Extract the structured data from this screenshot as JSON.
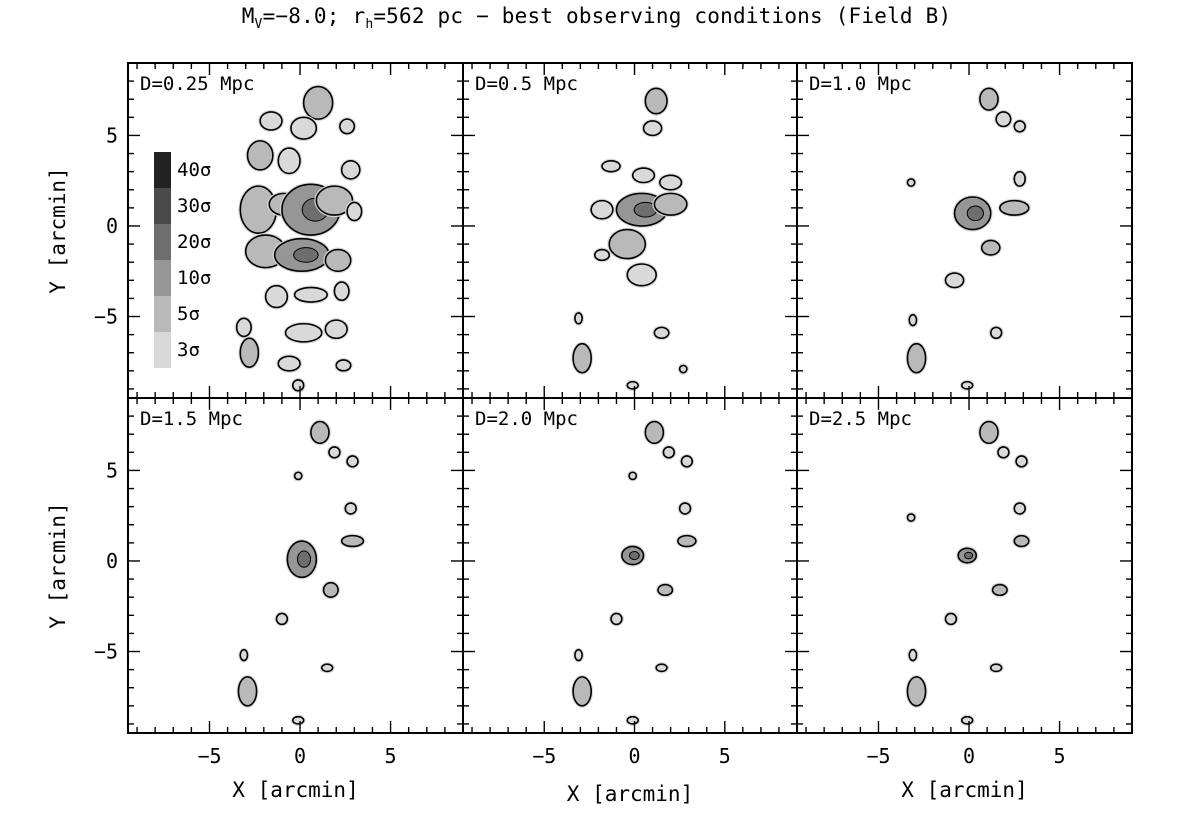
{
  "figure": {
    "title_parts": [
      "M",
      "V",
      "=−8.0; r",
      "h",
      "=562 pc − best observing conditions (Field B)"
    ]
  },
  "chart_data": {
    "type": "heatmap",
    "description_kind": "stellar density significance contour maps",
    "xlabel": "X [arcmin]",
    "ylabel": "Y [arcmin]",
    "xlim": [
      -9.5,
      9
    ],
    "ylim": [
      -9.5,
      9
    ],
    "xticks": [
      -5,
      0,
      5
    ],
    "yticks": [
      -5,
      0,
      5
    ],
    "grid": false,
    "legend": {
      "placement": "upper-left of first panel",
      "levels": [
        {
          "label": "40σ",
          "sigma": 40,
          "color": "#222222"
        },
        {
          "label": "30σ",
          "sigma": 30,
          "color": "#4a4a4a"
        },
        {
          "label": "20σ",
          "sigma": 20,
          "color": "#6e6e6e"
        },
        {
          "label": "10σ",
          "sigma": 10,
          "color": "#969696"
        },
        {
          "label": "5σ",
          "sigma": 5,
          "color": "#b9b9b9"
        },
        {
          "label": "3σ",
          "sigma": 3,
          "color": "#d9d9d9"
        }
      ]
    },
    "panels": [
      {
        "label": "D=0.25 Mpc",
        "distance_mpc": 0.25,
        "blobs": [
          {
            "x": 1.0,
            "y": 6.8,
            "rx": 0.8,
            "ry": 0.9,
            "level": 5
          },
          {
            "x": -1.6,
            "y": 5.8,
            "rx": 0.6,
            "ry": 0.5,
            "level": 3
          },
          {
            "x": 0.2,
            "y": 5.4,
            "rx": 0.7,
            "ry": 0.6,
            "level": 3
          },
          {
            "x": 2.6,
            "y": 5.5,
            "rx": 0.4,
            "ry": 0.4,
            "level": 3
          },
          {
            "x": -2.2,
            "y": 3.9,
            "rx": 0.7,
            "ry": 0.8,
            "level": 5
          },
          {
            "x": -0.6,
            "y": 3.6,
            "rx": 0.6,
            "ry": 0.7,
            "level": 3
          },
          {
            "x": 2.8,
            "y": 3.1,
            "rx": 0.5,
            "ry": 0.5,
            "level": 3
          },
          {
            "x": -2.3,
            "y": 0.9,
            "rx": 1.0,
            "ry": 1.3,
            "level": 5
          },
          {
            "x": -0.9,
            "y": 1.2,
            "rx": 0.8,
            "ry": 0.6,
            "level": 5
          },
          {
            "x": 0.6,
            "y": 0.9,
            "rx": 1.6,
            "ry": 1.4,
            "level": 10
          },
          {
            "x": 1.9,
            "y": 1.4,
            "rx": 1.0,
            "ry": 0.8,
            "level": 5
          },
          {
            "x": 3.0,
            "y": 0.8,
            "rx": 0.4,
            "ry": 0.5,
            "level": 3
          },
          {
            "x": -1.9,
            "y": -1.4,
            "rx": 1.1,
            "ry": 0.9,
            "level": 5
          },
          {
            "x": 0.1,
            "y": -1.6,
            "rx": 1.5,
            "ry": 0.9,
            "level": 10
          },
          {
            "x": 2.1,
            "y": -1.9,
            "rx": 0.7,
            "ry": 0.6,
            "level": 5
          },
          {
            "x": -1.3,
            "y": -3.9,
            "rx": 0.6,
            "ry": 0.6,
            "level": 3
          },
          {
            "x": 0.6,
            "y": -3.8,
            "rx": 0.9,
            "ry": 0.4,
            "level": 3
          },
          {
            "x": 2.3,
            "y": -3.6,
            "rx": 0.4,
            "ry": 0.5,
            "level": 3
          },
          {
            "x": -3.1,
            "y": -5.6,
            "rx": 0.4,
            "ry": 0.5,
            "level": 3
          },
          {
            "x": 0.2,
            "y": -5.9,
            "rx": 1.0,
            "ry": 0.5,
            "level": 3
          },
          {
            "x": 2.0,
            "y": -5.7,
            "rx": 0.6,
            "ry": 0.5,
            "level": 3
          },
          {
            "x": -2.8,
            "y": -7.0,
            "rx": 0.5,
            "ry": 0.8,
            "level": 5
          },
          {
            "x": -0.6,
            "y": -7.6,
            "rx": 0.6,
            "ry": 0.4,
            "level": 3
          },
          {
            "x": 2.4,
            "y": -7.7,
            "rx": 0.4,
            "ry": 0.3,
            "level": 3
          },
          {
            "x": -0.1,
            "y": -8.8,
            "rx": 0.3,
            "ry": 0.3,
            "level": 3
          }
        ]
      },
      {
        "label": "D=0.5 Mpc",
        "distance_mpc": 0.5,
        "blobs": [
          {
            "x": 1.2,
            "y": 6.9,
            "rx": 0.6,
            "ry": 0.7,
            "level": 5
          },
          {
            "x": 1.0,
            "y": 5.4,
            "rx": 0.5,
            "ry": 0.4,
            "level": 3
          },
          {
            "x": -1.3,
            "y": 3.3,
            "rx": 0.5,
            "ry": 0.3,
            "level": 3
          },
          {
            "x": 0.5,
            "y": 2.8,
            "rx": 0.6,
            "ry": 0.4,
            "level": 3
          },
          {
            "x": 2.0,
            "y": 2.4,
            "rx": 0.6,
            "ry": 0.4,
            "level": 3
          },
          {
            "x": -1.8,
            "y": 0.9,
            "rx": 0.6,
            "ry": 0.5,
            "level": 3
          },
          {
            "x": 0.4,
            "y": 0.9,
            "rx": 1.4,
            "ry": 0.9,
            "level": 10
          },
          {
            "x": 2.0,
            "y": 1.2,
            "rx": 0.9,
            "ry": 0.6,
            "level": 5
          },
          {
            "x": -0.4,
            "y": -1.0,
            "rx": 1.0,
            "ry": 0.8,
            "level": 5
          },
          {
            "x": 0.4,
            "y": -2.7,
            "rx": 0.8,
            "ry": 0.6,
            "level": 3
          },
          {
            "x": -1.8,
            "y": -1.6,
            "rx": 0.4,
            "ry": 0.3,
            "level": 3
          },
          {
            "x": -3.1,
            "y": -5.1,
            "rx": 0.2,
            "ry": 0.3,
            "level": 3
          },
          {
            "x": 1.5,
            "y": -5.9,
            "rx": 0.4,
            "ry": 0.3,
            "level": 3
          },
          {
            "x": -2.9,
            "y": -7.3,
            "rx": 0.5,
            "ry": 0.8,
            "level": 5
          },
          {
            "x": 2.7,
            "y": -7.9,
            "rx": 0.2,
            "ry": 0.2,
            "level": 3
          },
          {
            "x": -0.1,
            "y": -8.8,
            "rx": 0.3,
            "ry": 0.2,
            "level": 3
          }
        ]
      },
      {
        "label": "D=1.0 Mpc",
        "distance_mpc": 1.0,
        "blobs": [
          {
            "x": 1.1,
            "y": 7.0,
            "rx": 0.5,
            "ry": 0.6,
            "level": 5
          },
          {
            "x": 1.9,
            "y": 5.9,
            "rx": 0.4,
            "ry": 0.4,
            "level": 3
          },
          {
            "x": 2.8,
            "y": 5.5,
            "rx": 0.3,
            "ry": 0.3,
            "level": 3
          },
          {
            "x": 2.8,
            "y": 2.6,
            "rx": 0.3,
            "ry": 0.4,
            "level": 3
          },
          {
            "x": -3.2,
            "y": 2.4,
            "rx": 0.2,
            "ry": 0.2,
            "level": 3
          },
          {
            "x": 0.2,
            "y": 0.7,
            "rx": 1.0,
            "ry": 0.9,
            "level": 10
          },
          {
            "x": 2.5,
            "y": 1.0,
            "rx": 0.8,
            "ry": 0.4,
            "level": 5
          },
          {
            "x": 1.2,
            "y": -1.2,
            "rx": 0.5,
            "ry": 0.4,
            "level": 5
          },
          {
            "x": -0.8,
            "y": -3.0,
            "rx": 0.5,
            "ry": 0.4,
            "level": 3
          },
          {
            "x": -3.1,
            "y": -5.2,
            "rx": 0.2,
            "ry": 0.3,
            "level": 3
          },
          {
            "x": 1.5,
            "y": -5.9,
            "rx": 0.3,
            "ry": 0.3,
            "level": 3
          },
          {
            "x": -2.9,
            "y": -7.3,
            "rx": 0.5,
            "ry": 0.8,
            "level": 5
          },
          {
            "x": -0.1,
            "y": -8.8,
            "rx": 0.3,
            "ry": 0.2,
            "level": 3
          }
        ]
      },
      {
        "label": "D=1.5 Mpc",
        "distance_mpc": 1.5,
        "blobs": [
          {
            "x": 1.1,
            "y": 7.1,
            "rx": 0.5,
            "ry": 0.6,
            "level": 5
          },
          {
            "x": 1.9,
            "y": 6.0,
            "rx": 0.3,
            "ry": 0.3,
            "level": 3
          },
          {
            "x": 2.9,
            "y": 5.5,
            "rx": 0.3,
            "ry": 0.3,
            "level": 3
          },
          {
            "x": -0.1,
            "y": 4.7,
            "rx": 0.2,
            "ry": 0.2,
            "level": 3
          },
          {
            "x": 2.8,
            "y": 2.9,
            "rx": 0.3,
            "ry": 0.3,
            "level": 3
          },
          {
            "x": 0.1,
            "y": 0.1,
            "rx": 0.8,
            "ry": 1.0,
            "level": 10
          },
          {
            "x": 2.9,
            "y": 1.1,
            "rx": 0.6,
            "ry": 0.3,
            "level": 5
          },
          {
            "x": 1.7,
            "y": -1.6,
            "rx": 0.4,
            "ry": 0.4,
            "level": 5
          },
          {
            "x": -1.0,
            "y": -3.2,
            "rx": 0.3,
            "ry": 0.3,
            "level": 3
          },
          {
            "x": -3.1,
            "y": -5.2,
            "rx": 0.2,
            "ry": 0.3,
            "level": 3
          },
          {
            "x": -2.9,
            "y": -7.2,
            "rx": 0.5,
            "ry": 0.8,
            "level": 5
          },
          {
            "x": 1.5,
            "y": -5.9,
            "rx": 0.3,
            "ry": 0.2,
            "level": 3
          },
          {
            "x": -0.1,
            "y": -8.8,
            "rx": 0.3,
            "ry": 0.2,
            "level": 3
          }
        ]
      },
      {
        "label": "D=2.0 Mpc",
        "distance_mpc": 2.0,
        "blobs": [
          {
            "x": 1.1,
            "y": 7.1,
            "rx": 0.5,
            "ry": 0.6,
            "level": 5
          },
          {
            "x": 1.9,
            "y": 6.0,
            "rx": 0.3,
            "ry": 0.3,
            "level": 3
          },
          {
            "x": 2.9,
            "y": 5.5,
            "rx": 0.3,
            "ry": 0.3,
            "level": 3
          },
          {
            "x": -0.1,
            "y": 4.7,
            "rx": 0.2,
            "ry": 0.2,
            "level": 3
          },
          {
            "x": 2.8,
            "y": 2.9,
            "rx": 0.3,
            "ry": 0.3,
            "level": 3
          },
          {
            "x": -0.1,
            "y": 0.3,
            "rx": 0.6,
            "ry": 0.5,
            "level": 10
          },
          {
            "x": 2.9,
            "y": 1.1,
            "rx": 0.5,
            "ry": 0.3,
            "level": 5
          },
          {
            "x": 1.7,
            "y": -1.6,
            "rx": 0.4,
            "ry": 0.3,
            "level": 5
          },
          {
            "x": -1.0,
            "y": -3.2,
            "rx": 0.3,
            "ry": 0.3,
            "level": 3
          },
          {
            "x": -3.1,
            "y": -5.2,
            "rx": 0.2,
            "ry": 0.3,
            "level": 3
          },
          {
            "x": -2.9,
            "y": -7.2,
            "rx": 0.5,
            "ry": 0.8,
            "level": 5
          },
          {
            "x": 1.5,
            "y": -5.9,
            "rx": 0.3,
            "ry": 0.2,
            "level": 3
          },
          {
            "x": -0.1,
            "y": -8.8,
            "rx": 0.3,
            "ry": 0.2,
            "level": 3
          }
        ]
      },
      {
        "label": "D=2.5 Mpc",
        "distance_mpc": 2.5,
        "blobs": [
          {
            "x": 1.1,
            "y": 7.1,
            "rx": 0.5,
            "ry": 0.6,
            "level": 5
          },
          {
            "x": 1.9,
            "y": 6.0,
            "rx": 0.3,
            "ry": 0.3,
            "level": 3
          },
          {
            "x": 2.9,
            "y": 5.5,
            "rx": 0.3,
            "ry": 0.3,
            "level": 3
          },
          {
            "x": 2.8,
            "y": 2.9,
            "rx": 0.3,
            "ry": 0.3,
            "level": 3
          },
          {
            "x": -3.2,
            "y": 2.4,
            "rx": 0.2,
            "ry": 0.2,
            "level": 3
          },
          {
            "x": -0.1,
            "y": 0.3,
            "rx": 0.5,
            "ry": 0.4,
            "level": 10
          },
          {
            "x": 2.9,
            "y": 1.1,
            "rx": 0.4,
            "ry": 0.3,
            "level": 5
          },
          {
            "x": 1.7,
            "y": -1.6,
            "rx": 0.4,
            "ry": 0.3,
            "level": 5
          },
          {
            "x": -1.0,
            "y": -3.2,
            "rx": 0.3,
            "ry": 0.3,
            "level": 3
          },
          {
            "x": -3.1,
            "y": -5.2,
            "rx": 0.2,
            "ry": 0.3,
            "level": 3
          },
          {
            "x": -2.9,
            "y": -7.2,
            "rx": 0.5,
            "ry": 0.8,
            "level": 5
          },
          {
            "x": 1.5,
            "y": -5.9,
            "rx": 0.3,
            "ry": 0.2,
            "level": 3
          },
          {
            "x": -0.1,
            "y": -8.8,
            "rx": 0.3,
            "ry": 0.2,
            "level": 3
          }
        ]
      }
    ]
  }
}
